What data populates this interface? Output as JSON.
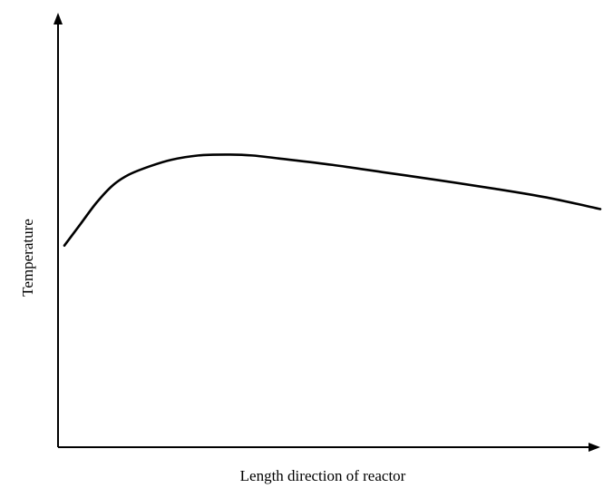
{
  "chart_data": {
    "type": "line",
    "title": "",
    "xlabel": "Length direction of reactor",
    "ylabel": "Temperature",
    "grid": false,
    "legend": "none",
    "x_ticks": [],
    "y_ticks": [],
    "xlim": [
      0,
      1
    ],
    "ylim": [
      0,
      1
    ],
    "series": [
      {
        "color": "#000000",
        "x": [
          0.0,
          0.03,
          0.06,
          0.09,
          0.12,
          0.16,
          0.2,
          0.25,
          0.3,
          0.35,
          0.4,
          0.5,
          0.6,
          0.7,
          0.8,
          0.9,
          1.0
        ],
        "y": [
          0.47,
          0.52,
          0.57,
          0.61,
          0.635,
          0.655,
          0.67,
          0.68,
          0.682,
          0.68,
          0.673,
          0.658,
          0.64,
          0.622,
          0.603,
          0.582,
          0.555
        ]
      }
    ]
  }
}
